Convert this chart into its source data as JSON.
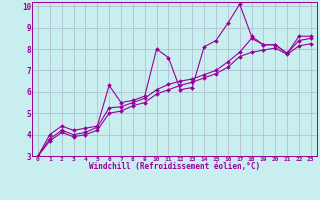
{
  "xlabel": "Windchill (Refroidissement éolien,°C)",
  "bg_color": "#c8eef0",
  "line_color": "#990099",
  "grid_color": "#aabbcc",
  "xlim": [
    -0.5,
    23.5
  ],
  "ylim": [
    3,
    10.2
  ],
  "xticks": [
    0,
    1,
    2,
    3,
    4,
    5,
    6,
    7,
    8,
    9,
    10,
    11,
    12,
    13,
    14,
    15,
    16,
    17,
    18,
    19,
    20,
    21,
    22,
    23
  ],
  "yticks": [
    3,
    4,
    5,
    6,
    7,
    8,
    9,
    10
  ],
  "line1_x": [
    0,
    1,
    2,
    3,
    4,
    5,
    6,
    7,
    8,
    9,
    10,
    11,
    12,
    13,
    14,
    15,
    16,
    17,
    18,
    19,
    20,
    21,
    22,
    23
  ],
  "line1_y": [
    3.0,
    4.0,
    4.4,
    4.2,
    4.3,
    4.4,
    6.3,
    5.5,
    5.6,
    5.8,
    8.0,
    7.6,
    6.1,
    6.2,
    8.1,
    8.4,
    9.2,
    10.1,
    8.6,
    8.2,
    8.2,
    7.8,
    8.6,
    8.6
  ],
  "line2_x": [
    0,
    1,
    2,
    3,
    4,
    5,
    6,
    7,
    8,
    9,
    10,
    11,
    12,
    13,
    14,
    15,
    16,
    17,
    18,
    19,
    20,
    21,
    22,
    23
  ],
  "line2_y": [
    3.0,
    3.8,
    4.2,
    4.0,
    4.1,
    4.35,
    5.25,
    5.3,
    5.5,
    5.7,
    6.1,
    6.35,
    6.5,
    6.6,
    6.8,
    7.0,
    7.4,
    7.85,
    8.5,
    8.2,
    8.2,
    7.8,
    8.4,
    8.5
  ],
  "line3_x": [
    0,
    1,
    2,
    3,
    4,
    5,
    6,
    7,
    8,
    9,
    10,
    11,
    12,
    13,
    14,
    15,
    16,
    17,
    18,
    19,
    20,
    21,
    22,
    23
  ],
  "line3_y": [
    3.0,
    3.7,
    4.1,
    3.9,
    4.0,
    4.2,
    5.0,
    5.1,
    5.35,
    5.5,
    5.9,
    6.1,
    6.3,
    6.45,
    6.65,
    6.85,
    7.15,
    7.65,
    7.85,
    7.95,
    8.05,
    7.75,
    8.15,
    8.25
  ]
}
